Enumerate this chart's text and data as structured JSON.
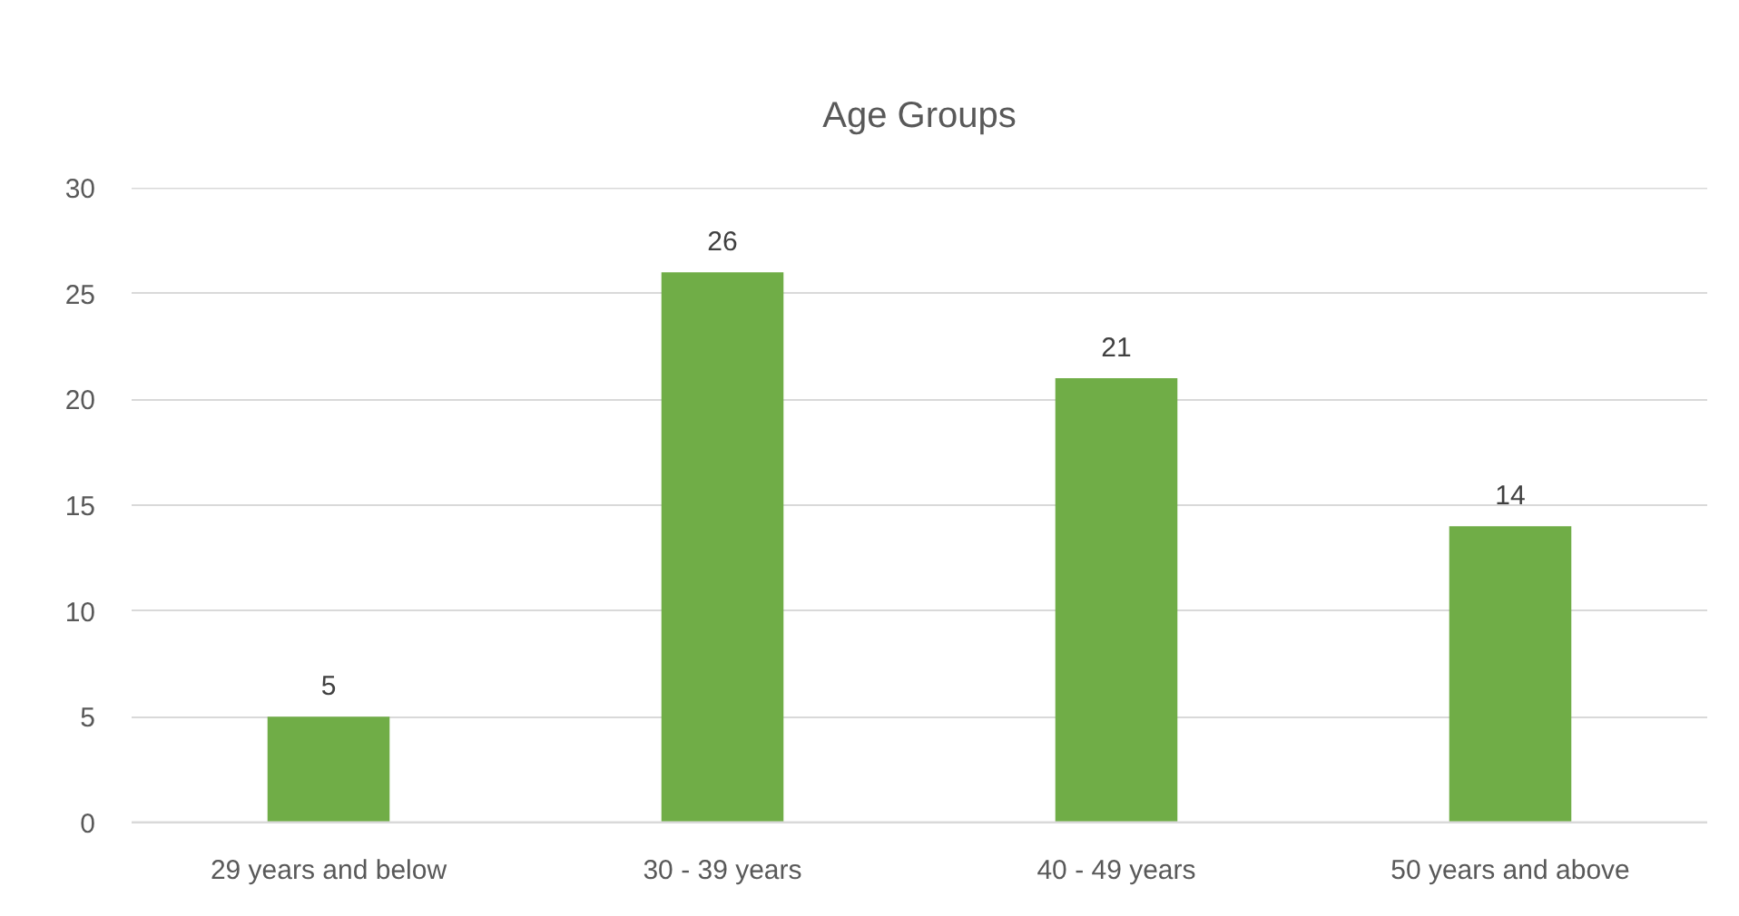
{
  "chart_data": {
    "type": "bar",
    "title": "Age Groups",
    "categories": [
      "29 years and below",
      "30 - 39 years",
      "40 - 49 years",
      "50 years and above"
    ],
    "values": [
      5,
      26,
      21,
      14
    ],
    "color": "#70ad47",
    "data_labels": true,
    "ylim": [
      0,
      30
    ],
    "yticks": [
      0,
      5,
      10,
      15,
      20,
      25,
      30
    ],
    "grid": "y"
  }
}
